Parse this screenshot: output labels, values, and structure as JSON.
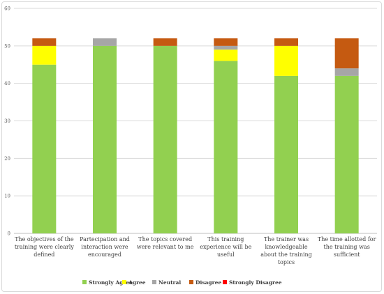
{
  "chart_data": {
    "type": "bar",
    "stacked": true,
    "categories": [
      [
        "The objectives of the",
        "training were clearly",
        "defined"
      ],
      [
        "Partecipation and",
        "interaction were",
        "encouraged"
      ],
      [
        "The topics covered",
        "were relevant to me"
      ],
      [
        "This training",
        "experience will be",
        "useful"
      ],
      [
        "The trainer was",
        "knowledgeable",
        "about the training",
        "topics"
      ],
      [
        "The time allotted for",
        "the training was",
        "sufficient"
      ]
    ],
    "series": [
      {
        "name": "Strongly  Agree",
        "color": "#92d050",
        "values": [
          45,
          50,
          50,
          46,
          42,
          42
        ]
      },
      {
        "name": "Agree",
        "color": "#ffff00",
        "values": [
          5,
          0,
          0,
          3,
          8,
          0
        ]
      },
      {
        "name": "Neutral",
        "color": "#a6a6a6",
        "values": [
          0,
          2,
          0,
          1,
          0,
          2
        ]
      },
      {
        "name": "Disagree",
        "color": "#c55a11",
        "values": [
          2,
          0,
          2,
          2,
          2,
          8
        ]
      },
      {
        "name": "Strongly  Disagree",
        "color": "#ff0000",
        "values": [
          0,
          0,
          0,
          0,
          0,
          0
        ]
      }
    ],
    "ylim": [
      0,
      60
    ],
    "yticks": [
      0,
      10,
      20,
      30,
      40,
      50,
      60
    ],
    "grid": true,
    "legend": "bottom"
  }
}
